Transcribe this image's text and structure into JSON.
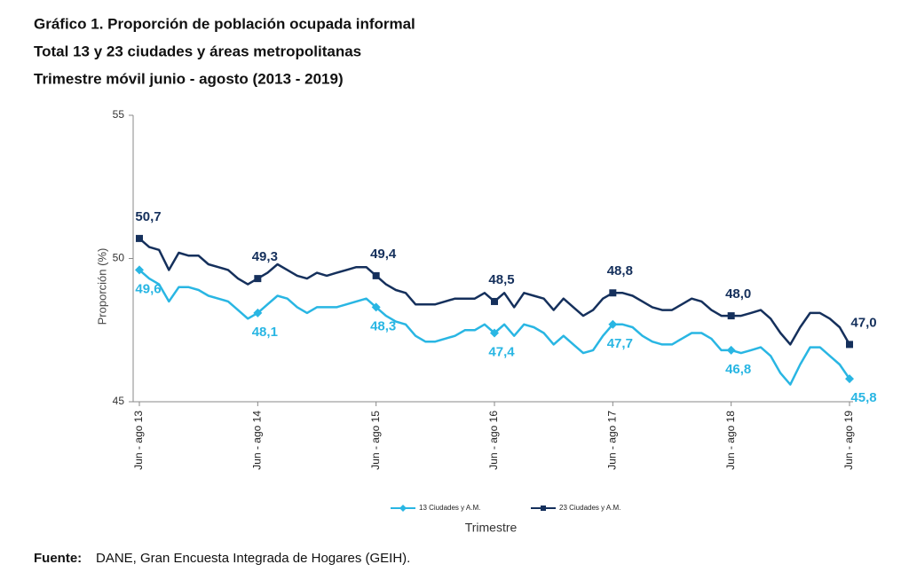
{
  "chart_data": {
    "type": "line",
    "title": "Gráfico 1. Proporción de población ocupada informal",
    "subtitle": "Total 13 y 23 ciudades y áreas metropolitanas",
    "subtitle2": "Trimestre móvil junio - agosto (2013 - 2019)",
    "ylabel": "Proporción (%)",
    "xlabel": "Trimestre",
    "ylim": [
      45,
      55
    ],
    "yticks": [
      45,
      50,
      55
    ],
    "legend": "bottom",
    "categories": [
      "Jun - ago 13",
      null,
      null,
      null,
      null,
      null,
      null,
      null,
      null,
      null,
      null,
      null,
      "Jun - ago 14",
      null,
      null,
      null,
      null,
      null,
      null,
      null,
      null,
      null,
      null,
      null,
      "Jun - ago 15",
      null,
      null,
      null,
      null,
      null,
      null,
      null,
      null,
      null,
      null,
      null,
      "Jun - ago 16",
      null,
      null,
      null,
      null,
      null,
      null,
      null,
      null,
      null,
      null,
      null,
      "Jun - ago 17",
      null,
      null,
      null,
      null,
      null,
      null,
      null,
      null,
      null,
      null,
      null,
      "Jun - ago 18",
      null,
      null,
      null,
      null,
      null,
      null,
      null,
      null,
      null,
      null,
      null,
      "Jun - ago 19"
    ],
    "series": [
      {
        "name": "13 Ciudades y A.M.",
        "color": "#29b6e3",
        "marker": "diamond",
        "values": [
          49.6,
          49.3,
          49.1,
          48.5,
          49.0,
          49.0,
          48.9,
          48.7,
          48.6,
          48.5,
          48.2,
          47.9,
          48.1,
          48.4,
          48.7,
          48.6,
          48.3,
          48.1,
          48.3,
          48.3,
          48.3,
          48.4,
          48.5,
          48.6,
          48.3,
          48.0,
          47.8,
          47.7,
          47.3,
          47.1,
          47.1,
          47.2,
          47.3,
          47.5,
          47.5,
          47.7,
          47.4,
          47.7,
          47.3,
          47.7,
          47.6,
          47.4,
          47.0,
          47.3,
          47.0,
          46.7,
          46.8,
          47.3,
          47.7,
          47.7,
          47.6,
          47.3,
          47.1,
          47.0,
          47.0,
          47.2,
          47.4,
          47.4,
          47.2,
          46.8,
          46.8,
          46.7,
          46.8,
          46.9,
          46.6,
          46.0,
          45.6,
          46.3,
          46.9,
          46.9,
          46.6,
          46.3,
          45.8
        ],
        "value_labels": [
          "49,6",
          null,
          null,
          null,
          null,
          null,
          null,
          null,
          null,
          null,
          null,
          null,
          "48,1",
          null,
          null,
          null,
          null,
          null,
          null,
          null,
          null,
          null,
          null,
          null,
          "48,3",
          null,
          null,
          null,
          null,
          null,
          null,
          null,
          null,
          null,
          null,
          null,
          "47,4",
          null,
          null,
          null,
          null,
          null,
          null,
          null,
          null,
          null,
          null,
          null,
          "47,7",
          null,
          null,
          null,
          null,
          null,
          null,
          null,
          null,
          null,
          null,
          null,
          "46,8",
          null,
          null,
          null,
          null,
          null,
          null,
          null,
          null,
          null,
          null,
          null,
          "45,8"
        ]
      },
      {
        "name": "23  Ciudades y A.M.",
        "color": "#15305c",
        "marker": "square",
        "values": [
          50.7,
          50.4,
          50.3,
          49.6,
          50.2,
          50.1,
          50.1,
          49.8,
          49.7,
          49.6,
          49.3,
          49.1,
          49.3,
          49.5,
          49.8,
          49.6,
          49.4,
          49.3,
          49.5,
          49.4,
          49.5,
          49.6,
          49.7,
          49.7,
          49.4,
          49.1,
          48.9,
          48.8,
          48.4,
          48.4,
          48.4,
          48.5,
          48.6,
          48.6,
          48.6,
          48.8,
          48.5,
          48.8,
          48.3,
          48.8,
          48.7,
          48.6,
          48.2,
          48.6,
          48.3,
          48.0,
          48.2,
          48.6,
          48.8,
          48.8,
          48.7,
          48.5,
          48.3,
          48.2,
          48.2,
          48.4,
          48.6,
          48.5,
          48.2,
          48.0,
          48.0,
          48.0,
          48.1,
          48.2,
          47.9,
          47.4,
          47.0,
          47.6,
          48.1,
          48.1,
          47.9,
          47.6,
          47.0
        ],
        "value_labels": [
          "50,7",
          null,
          null,
          null,
          null,
          null,
          null,
          null,
          null,
          null,
          null,
          null,
          "49,3",
          null,
          null,
          null,
          null,
          null,
          null,
          null,
          null,
          null,
          null,
          null,
          "49,4",
          null,
          null,
          null,
          null,
          null,
          null,
          null,
          null,
          null,
          null,
          null,
          "48,5",
          null,
          null,
          null,
          null,
          null,
          null,
          null,
          null,
          null,
          null,
          null,
          "48,8",
          null,
          null,
          null,
          null,
          null,
          null,
          null,
          null,
          null,
          null,
          null,
          "48,0",
          null,
          null,
          null,
          null,
          null,
          null,
          null,
          null,
          null,
          null,
          null,
          "47,0"
        ]
      }
    ],
    "source": {
      "label": "Fuente:",
      "text": "DANE, Gran Encuesta Integrada de Hogares (GEIH)."
    }
  }
}
